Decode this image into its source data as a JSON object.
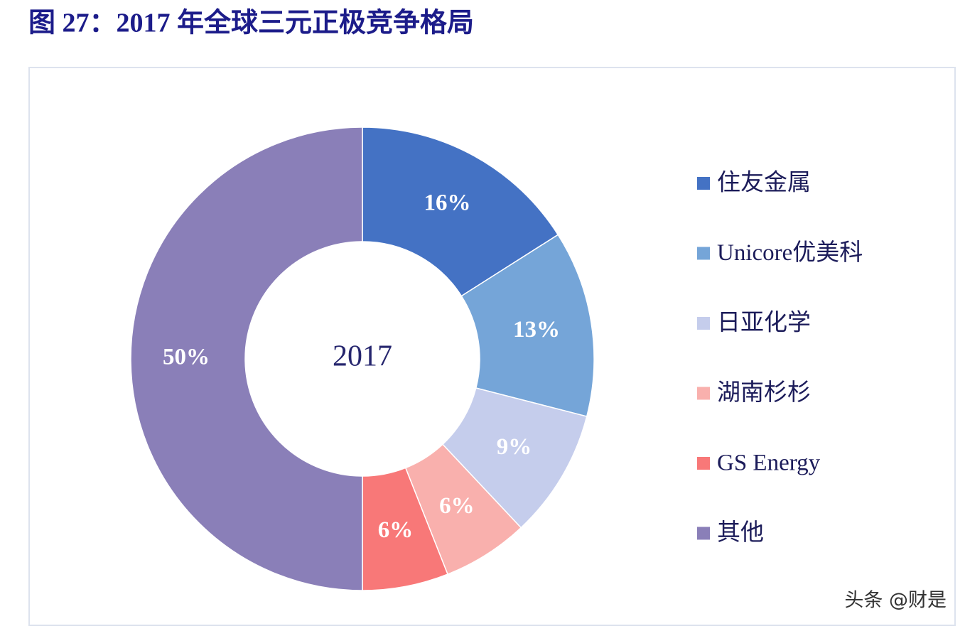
{
  "chart_data": {
    "type": "donut",
    "title": "图 27：2017 年全球三元正极竞争格局",
    "center_label": "2017",
    "categories": [
      "住友金属",
      "Unicore优美科",
      "日亚化学",
      "湖南杉杉",
      "GS Energy",
      "其他"
    ],
    "values": [
      16,
      13,
      9,
      6,
      6,
      50
    ],
    "value_labels": [
      "16%",
      "13%",
      "9%",
      "6%",
      "6%",
      "50%"
    ],
    "colors": [
      "#4472c4",
      "#75a5d8",
      "#c5cdec",
      "#f9b0ad",
      "#f87878",
      "#8a7fb8"
    ]
  },
  "watermark": "头条 @财是"
}
